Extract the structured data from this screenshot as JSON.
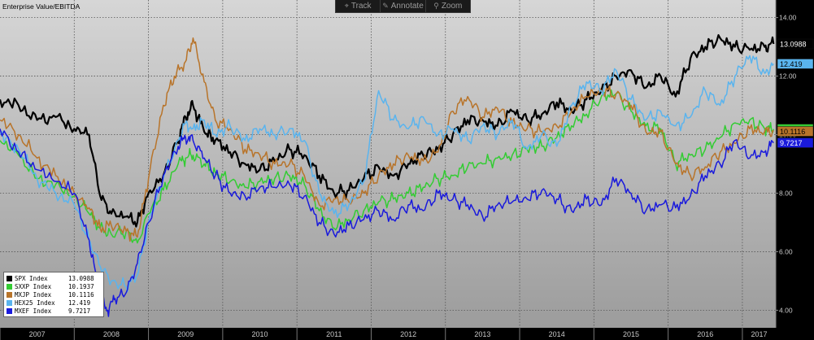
{
  "toolbar": {
    "track_label": "Track",
    "annotate_label": "Annotate",
    "zoom_label": "Zoom",
    "track_icon": "crosshair-icon",
    "annotate_icon": "pencil-icon",
    "zoom_icon": "magnifier-icon"
  },
  "colors": {
    "plot_bg_top": "#d6d6d6",
    "plot_bg_bottom": "#9c9c9c",
    "gridline": "#555555"
  },
  "chart_data": {
    "type": "line",
    "title": "Enterprise Value/EBITDA",
    "xlabel": "",
    "ylabel": "",
    "x_domain": [
      2007.0,
      2017.45
    ],
    "ylim": [
      3.4,
      14.6
    ],
    "y_ticks": [
      4.0,
      6.0,
      8.0,
      10.0,
      12.0,
      14.0
    ],
    "y_tick_labels": [
      "4.00",
      "6.00",
      "8.00",
      "10.00",
      "12.00",
      "14.00"
    ],
    "x_tick_years": [
      2007,
      2008,
      2009,
      2010,
      2011,
      2012,
      2013,
      2014,
      2015,
      2016,
      2017
    ],
    "x_tick_labels": [
      "2007",
      "2008",
      "2009",
      "2010",
      "2011",
      "2012",
      "2013",
      "2014",
      "2015",
      "2016",
      "2017"
    ],
    "grid": true,
    "legend_position": "bottom-left",
    "series": [
      {
        "name": "SPX Index",
        "last_label": "13.0988",
        "color": "#000000",
        "points": [
          [
            2007.0,
            11.2
          ],
          [
            2007.25,
            11.0
          ],
          [
            2007.5,
            10.5
          ],
          [
            2007.75,
            10.6
          ],
          [
            2008.0,
            10.2
          ],
          [
            2008.2,
            10.0
          ],
          [
            2008.35,
            7.9
          ],
          [
            2008.5,
            7.3
          ],
          [
            2008.7,
            7.2
          ],
          [
            2008.85,
            7.0
          ],
          [
            2009.0,
            8.0
          ],
          [
            2009.2,
            8.6
          ],
          [
            2009.4,
            9.8
          ],
          [
            2009.5,
            10.6
          ],
          [
            2009.6,
            11.0
          ],
          [
            2009.75,
            10.1
          ],
          [
            2009.9,
            9.8
          ],
          [
            2010.1,
            9.4
          ],
          [
            2010.3,
            9.0
          ],
          [
            2010.5,
            8.8
          ],
          [
            2010.7,
            9.1
          ],
          [
            2010.9,
            9.5
          ],
          [
            2011.1,
            9.3
          ],
          [
            2011.3,
            8.6
          ],
          [
            2011.5,
            8.0
          ],
          [
            2011.7,
            8.1
          ],
          [
            2011.9,
            8.5
          ],
          [
            2012.1,
            8.9
          ],
          [
            2012.3,
            8.6
          ],
          [
            2012.5,
            9.0
          ],
          [
            2012.7,
            9.3
          ],
          [
            2012.9,
            9.5
          ],
          [
            2013.1,
            10.0
          ],
          [
            2013.3,
            10.5
          ],
          [
            2013.5,
            10.5
          ],
          [
            2013.7,
            10.3
          ],
          [
            2013.9,
            10.8
          ],
          [
            2014.1,
            10.5
          ],
          [
            2014.3,
            10.7
          ],
          [
            2014.5,
            11.1
          ],
          [
            2014.7,
            10.8
          ],
          [
            2014.9,
            11.2
          ],
          [
            2015.1,
            11.5
          ],
          [
            2015.3,
            12.0
          ],
          [
            2015.5,
            12.2
          ],
          [
            2015.7,
            11.6
          ],
          [
            2015.9,
            12.0
          ],
          [
            2016.1,
            11.3
          ],
          [
            2016.3,
            12.6
          ],
          [
            2016.5,
            13.0
          ],
          [
            2016.7,
            13.3
          ],
          [
            2016.9,
            13.0
          ],
          [
            2017.1,
            12.9
          ],
          [
            2017.3,
            13.0
          ],
          [
            2017.42,
            13.1
          ]
        ]
      },
      {
        "name": "SXXP Index",
        "last_label": "10.1937",
        "color": "#33cc33",
        "points": [
          [
            2007.0,
            9.8
          ],
          [
            2007.25,
            9.3
          ],
          [
            2007.5,
            8.5
          ],
          [
            2007.75,
            8.3
          ],
          [
            2008.0,
            7.9
          ],
          [
            2008.2,
            7.3
          ],
          [
            2008.35,
            6.8
          ],
          [
            2008.5,
            6.6
          ],
          [
            2008.7,
            6.7
          ],
          [
            2008.85,
            6.3
          ],
          [
            2009.0,
            7.3
          ],
          [
            2009.2,
            8.1
          ],
          [
            2009.4,
            9.0
          ],
          [
            2009.5,
            9.2
          ],
          [
            2009.6,
            9.3
          ],
          [
            2009.75,
            9.0
          ],
          [
            2009.9,
            8.7
          ],
          [
            2010.1,
            8.4
          ],
          [
            2010.3,
            8.2
          ],
          [
            2010.5,
            8.4
          ],
          [
            2010.7,
            8.5
          ],
          [
            2010.9,
            8.6
          ],
          [
            2011.1,
            8.3
          ],
          [
            2011.3,
            7.4
          ],
          [
            2011.5,
            6.8
          ],
          [
            2011.7,
            7.1
          ],
          [
            2011.9,
            7.4
          ],
          [
            2012.1,
            7.7
          ],
          [
            2012.3,
            7.8
          ],
          [
            2012.5,
            8.0
          ],
          [
            2012.7,
            8.2
          ],
          [
            2012.9,
            8.5
          ],
          [
            2013.1,
            8.6
          ],
          [
            2013.3,
            8.9
          ],
          [
            2013.5,
            9.0
          ],
          [
            2013.7,
            9.2
          ],
          [
            2013.9,
            9.3
          ],
          [
            2014.1,
            9.5
          ],
          [
            2014.3,
            9.6
          ],
          [
            2014.5,
            9.9
          ],
          [
            2014.7,
            10.3
          ],
          [
            2014.9,
            10.7
          ],
          [
            2015.1,
            11.3
          ],
          [
            2015.3,
            11.4
          ],
          [
            2015.5,
            10.8
          ],
          [
            2015.7,
            10.3
          ],
          [
            2015.9,
            10.2
          ],
          [
            2016.1,
            9.0
          ],
          [
            2016.3,
            9.3
          ],
          [
            2016.5,
            9.5
          ],
          [
            2016.7,
            9.9
          ],
          [
            2016.9,
            10.4
          ],
          [
            2017.1,
            10.5
          ],
          [
            2017.3,
            10.2
          ],
          [
            2017.42,
            10.19
          ]
        ]
      },
      {
        "name": "MXJP Index",
        "last_label": "10.1116",
        "color": "#b8742a",
        "points": [
          [
            2007.0,
            10.5
          ],
          [
            2007.25,
            10.0
          ],
          [
            2007.5,
            9.2
          ],
          [
            2007.75,
            8.6
          ],
          [
            2008.0,
            8.0
          ],
          [
            2008.2,
            7.5
          ],
          [
            2008.35,
            6.8
          ],
          [
            2008.5,
            6.9
          ],
          [
            2008.7,
            6.7
          ],
          [
            2008.85,
            6.5
          ],
          [
            2009.0,
            8.5
          ],
          [
            2009.2,
            11.0
          ],
          [
            2009.35,
            12.0
          ],
          [
            2009.5,
            12.5
          ],
          [
            2009.6,
            13.3
          ],
          [
            2009.75,
            11.8
          ],
          [
            2009.9,
            10.5
          ],
          [
            2010.1,
            10.2
          ],
          [
            2010.3,
            9.5
          ],
          [
            2010.5,
            9.3
          ],
          [
            2010.7,
            9.0
          ],
          [
            2010.9,
            9.0
          ],
          [
            2011.1,
            8.6
          ],
          [
            2011.3,
            7.6
          ],
          [
            2011.5,
            7.8
          ],
          [
            2011.7,
            7.7
          ],
          [
            2011.9,
            8.0
          ],
          [
            2012.1,
            8.6
          ],
          [
            2012.3,
            9.0
          ],
          [
            2012.5,
            9.3
          ],
          [
            2012.7,
            9.1
          ],
          [
            2012.9,
            9.4
          ],
          [
            2013.1,
            10.8
          ],
          [
            2013.3,
            11.3
          ],
          [
            2013.5,
            10.6
          ],
          [
            2013.7,
            10.9
          ],
          [
            2013.9,
            10.4
          ],
          [
            2014.1,
            10.2
          ],
          [
            2014.3,
            10.1
          ],
          [
            2014.5,
            10.3
          ],
          [
            2014.7,
            10.8
          ],
          [
            2014.9,
            11.3
          ],
          [
            2015.1,
            11.5
          ],
          [
            2015.3,
            11.4
          ],
          [
            2015.5,
            11.0
          ],
          [
            2015.7,
            10.1
          ],
          [
            2015.9,
            10.1
          ],
          [
            2016.1,
            9.0
          ],
          [
            2016.3,
            8.6
          ],
          [
            2016.5,
            8.9
          ],
          [
            2016.7,
            9.4
          ],
          [
            2016.9,
            9.7
          ],
          [
            2017.1,
            10.2
          ],
          [
            2017.3,
            10.1
          ],
          [
            2017.42,
            10.11
          ]
        ]
      },
      {
        "name": "HEX25 Index",
        "last_label": "12.419",
        "color": "#5ab4ee",
        "points": [
          [
            2007.0,
            10.0
          ],
          [
            2007.25,
            9.5
          ],
          [
            2007.5,
            8.5
          ],
          [
            2007.75,
            8.0
          ],
          [
            2008.0,
            7.6
          ],
          [
            2008.2,
            6.4
          ],
          [
            2008.35,
            5.5
          ],
          [
            2008.5,
            5.0
          ],
          [
            2008.7,
            4.8
          ],
          [
            2008.85,
            5.2
          ],
          [
            2009.0,
            7.0
          ],
          [
            2009.2,
            8.5
          ],
          [
            2009.4,
            9.8
          ],
          [
            2009.5,
            10.4
          ],
          [
            2009.6,
            10.2
          ],
          [
            2009.75,
            10.5
          ],
          [
            2009.9,
            10.0
          ],
          [
            2010.1,
            10.3
          ],
          [
            2010.3,
            9.8
          ],
          [
            2010.5,
            10.2
          ],
          [
            2010.7,
            10.0
          ],
          [
            2010.9,
            10.2
          ],
          [
            2011.1,
            9.8
          ],
          [
            2011.3,
            8.0
          ],
          [
            2011.5,
            7.3
          ],
          [
            2011.7,
            7.6
          ],
          [
            2011.9,
            8.4
          ],
          [
            2012.1,
            11.5
          ],
          [
            2012.3,
            10.5
          ],
          [
            2012.5,
            10.2
          ],
          [
            2012.7,
            10.6
          ],
          [
            2012.9,
            10.0
          ],
          [
            2013.1,
            10.2
          ],
          [
            2013.3,
            9.8
          ],
          [
            2013.5,
            10.3
          ],
          [
            2013.7,
            10.0
          ],
          [
            2013.9,
            10.5
          ],
          [
            2014.1,
            9.5
          ],
          [
            2014.3,
            10.0
          ],
          [
            2014.5,
            9.6
          ],
          [
            2014.7,
            11.0
          ],
          [
            2014.9,
            11.8
          ],
          [
            2015.1,
            11.5
          ],
          [
            2015.3,
            12.2
          ],
          [
            2015.5,
            11.2
          ],
          [
            2015.7,
            10.5
          ],
          [
            2015.9,
            10.8
          ],
          [
            2016.1,
            10.3
          ],
          [
            2016.3,
            10.6
          ],
          [
            2016.5,
            11.5
          ],
          [
            2016.7,
            11.0
          ],
          [
            2016.9,
            12.0
          ],
          [
            2017.1,
            12.7
          ],
          [
            2017.3,
            12.1
          ],
          [
            2017.42,
            12.42
          ]
        ]
      },
      {
        "name": "MXEF Index",
        "last_label": "9.7217",
        "color": "#1a1adc",
        "points": [
          [
            2007.0,
            10.2
          ],
          [
            2007.25,
            9.4
          ],
          [
            2007.5,
            8.8
          ],
          [
            2007.75,
            8.4
          ],
          [
            2008.0,
            8.0
          ],
          [
            2008.2,
            6.4
          ],
          [
            2008.35,
            4.4
          ],
          [
            2008.45,
            4.0
          ],
          [
            2008.55,
            4.4
          ],
          [
            2008.7,
            4.6
          ],
          [
            2008.85,
            5.6
          ],
          [
            2009.0,
            7.0
          ],
          [
            2009.2,
            8.6
          ],
          [
            2009.4,
            9.6
          ],
          [
            2009.5,
            9.9
          ],
          [
            2009.6,
            9.8
          ],
          [
            2009.75,
            9.2
          ],
          [
            2009.9,
            8.6
          ],
          [
            2010.1,
            8.0
          ],
          [
            2010.3,
            7.9
          ],
          [
            2010.5,
            8.2
          ],
          [
            2010.7,
            8.2
          ],
          [
            2010.9,
            8.3
          ],
          [
            2011.1,
            7.9
          ],
          [
            2011.3,
            7.0
          ],
          [
            2011.5,
            6.6
          ],
          [
            2011.7,
            6.9
          ],
          [
            2011.9,
            7.1
          ],
          [
            2012.1,
            7.4
          ],
          [
            2012.3,
            7.1
          ],
          [
            2012.5,
            7.6
          ],
          [
            2012.7,
            7.4
          ],
          [
            2012.9,
            8.0
          ],
          [
            2013.1,
            7.8
          ],
          [
            2013.3,
            7.6
          ],
          [
            2013.5,
            7.2
          ],
          [
            2013.7,
            7.6
          ],
          [
            2013.9,
            7.7
          ],
          [
            2014.1,
            7.8
          ],
          [
            2014.3,
            8.1
          ],
          [
            2014.5,
            7.8
          ],
          [
            2014.7,
            7.4
          ],
          [
            2014.9,
            7.8
          ],
          [
            2015.1,
            7.6
          ],
          [
            2015.3,
            8.5
          ],
          [
            2015.5,
            8.0
          ],
          [
            2015.7,
            7.4
          ],
          [
            2015.9,
            7.6
          ],
          [
            2016.1,
            7.5
          ],
          [
            2016.3,
            7.9
          ],
          [
            2016.5,
            8.6
          ],
          [
            2016.7,
            9.0
          ],
          [
            2016.9,
            9.8
          ],
          [
            2017.1,
            9.2
          ],
          [
            2017.3,
            9.4
          ],
          [
            2017.42,
            9.72
          ]
        ]
      }
    ]
  }
}
